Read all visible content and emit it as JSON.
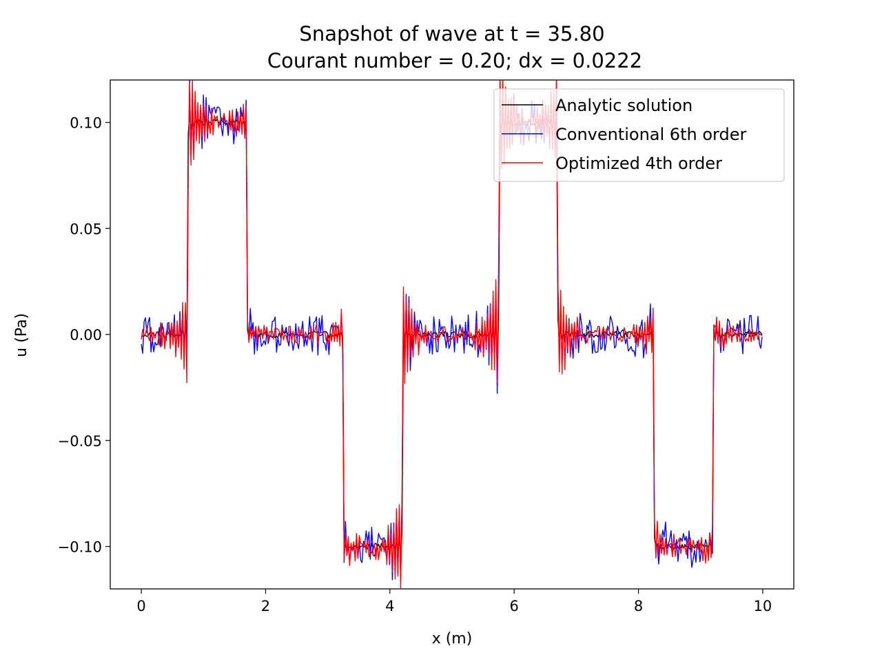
{
  "chart_data": {
    "type": "line",
    "title_line1": "Snapshot of wave at t = 35.80",
    "title_line2": "Courant number = 0.20; dx = 0.0222",
    "xlabel": "x (m)",
    "ylabel": "u (Pa)",
    "xlim": [
      -0.5,
      10.5
    ],
    "ylim": [
      -0.12,
      0.12
    ],
    "xticks": [
      0,
      2,
      4,
      6,
      8,
      10
    ],
    "xtick_labels": [
      "0",
      "2",
      "4",
      "6",
      "8",
      "10"
    ],
    "yticks": [
      0.1,
      0.05,
      0.0,
      -0.05,
      -0.1
    ],
    "ytick_labels": [
      "0.10",
      "0.05",
      "0.00",
      "−0.05",
      "−0.10"
    ],
    "legend_position": "top-right",
    "wave": {
      "x_start": 0.0,
      "x_end": 10.0,
      "dx": 0.0222,
      "amplitude": 0.1,
      "pulses": [
        {
          "x_from": 0.75,
          "x_to": 1.7,
          "level": 0.1
        },
        {
          "x_from": 3.25,
          "x_to": 4.2,
          "level": -0.1
        },
        {
          "x_from": 5.75,
          "x_to": 6.7,
          "level": 0.1
        },
        {
          "x_from": 8.25,
          "x_to": 9.2,
          "level": -0.1
        }
      ]
    },
    "series": [
      {
        "name": "Analytic solution",
        "color": "#000000",
        "ringing_amp": 0.008,
        "noise_amp": 0.0015
      },
      {
        "name": "Conventional 6th order",
        "color": "#0000ff",
        "ringing_amp": 0.022,
        "noise_amp": 0.009
      },
      {
        "name": "Optimized 4th order",
        "color": "#ff0000",
        "ringing_amp": 0.03,
        "noise_amp": 0.004
      }
    ]
  }
}
